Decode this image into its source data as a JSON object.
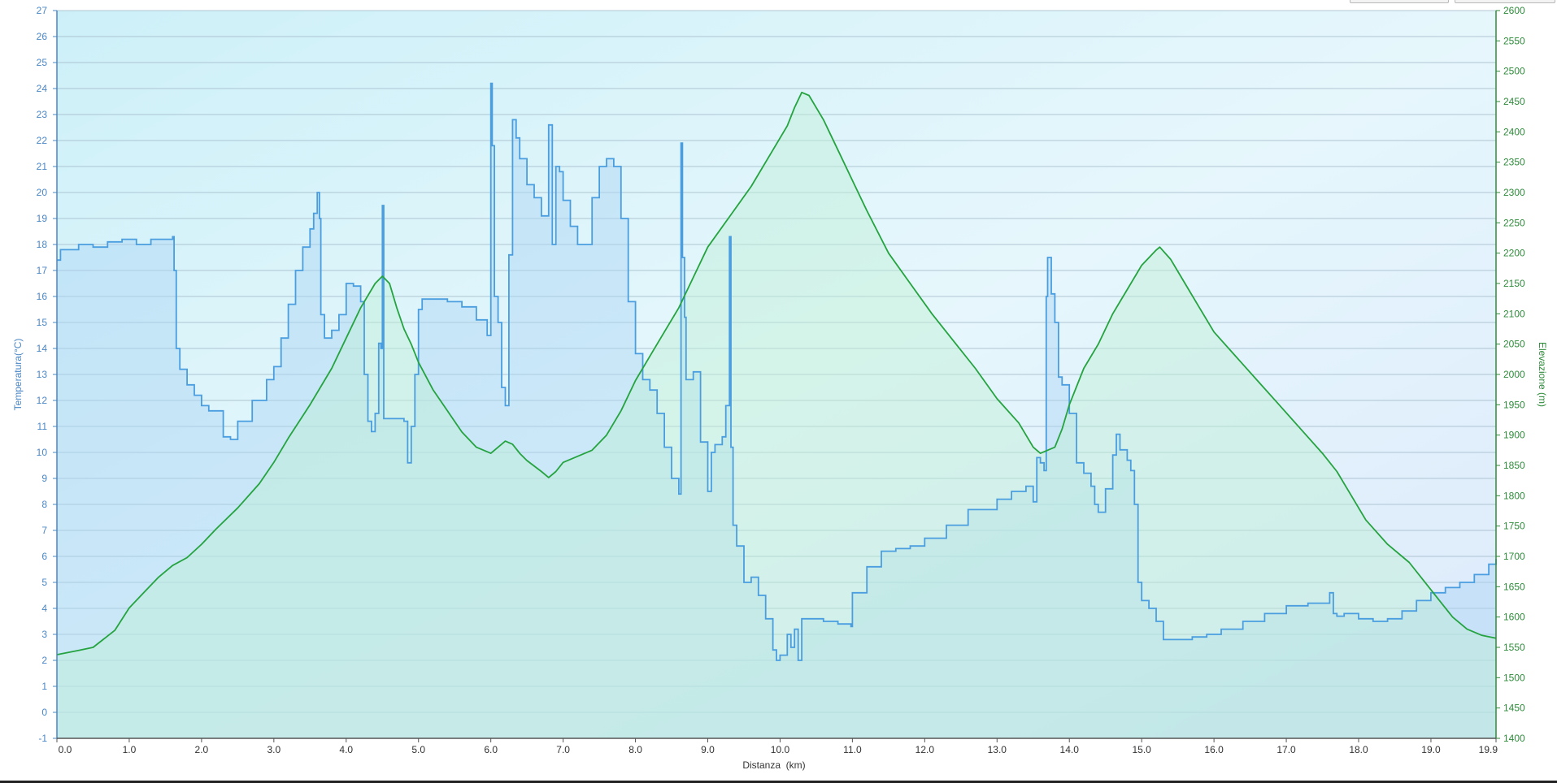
{
  "chart_data": {
    "type": "area",
    "xlabel": "Distanza  (km)",
    "xlim": [
      0,
      19.9
    ],
    "x_ticks": [
      "0.0",
      "1.0",
      "2.0",
      "3.0",
      "4.0",
      "5.0",
      "6.0",
      "7.0",
      "8.0",
      "9.0",
      "10.0",
      "11.0",
      "12.0",
      "13.0",
      "14.0",
      "15.0",
      "16.0",
      "17.0",
      "18.0",
      "19.0",
      "19.9"
    ],
    "y_left": {
      "label": "Temperatura(°C)",
      "range": [
        -1,
        27
      ],
      "ticks": [
        -1,
        0,
        1,
        2,
        3,
        4,
        5,
        6,
        7,
        8,
        9,
        10,
        11,
        12,
        13,
        14,
        15,
        16,
        17,
        18,
        19,
        20,
        21,
        22,
        23,
        24,
        25,
        26,
        27
      ]
    },
    "y_right": {
      "label": "Elevazione (m)",
      "range": [
        1400,
        2600
      ],
      "ticks": [
        1400,
        1450,
        1500,
        1550,
        1600,
        1650,
        1700,
        1750,
        1800,
        1850,
        1900,
        1950,
        2000,
        2050,
        2100,
        2150,
        2200,
        2250,
        2300,
        2350,
        2400,
        2450,
        2500,
        2550,
        2600
      ]
    },
    "grid": true,
    "series": [
      {
        "name": "Temperatura(°C)",
        "axis": "left",
        "color": "#4a9ee0",
        "x": [
          0,
          0.05,
          0.1,
          0.3,
          0.5,
          0.7,
          0.9,
          1.1,
          1.3,
          1.5,
          1.6,
          1.62,
          1.65,
          1.7,
          1.8,
          1.9,
          2.0,
          2.1,
          2.2,
          2.3,
          2.4,
          2.5,
          2.7,
          2.9,
          3.0,
          3.1,
          3.2,
          3.3,
          3.4,
          3.5,
          3.55,
          3.6,
          3.63,
          3.65,
          3.7,
          3.8,
          3.9,
          4.0,
          4.1,
          4.2,
          4.25,
          4.3,
          4.35,
          4.4,
          4.45,
          4.48,
          4.5,
          4.52,
          4.55,
          4.6,
          4.8,
          4.85,
          4.9,
          4.95,
          5.0,
          5.05,
          5.2,
          5.4,
          5.6,
          5.8,
          5.95,
          6.0,
          6.02,
          6.05,
          6.1,
          6.15,
          6.2,
          6.25,
          6.3,
          6.35,
          6.4,
          6.45,
          6.5,
          6.6,
          6.7,
          6.8,
          6.85,
          6.9,
          6.95,
          7.0,
          7.1,
          7.2,
          7.3,
          7.4,
          7.5,
          7.6,
          7.7,
          7.8,
          7.9,
          8.0,
          8.1,
          8.2,
          8.3,
          8.4,
          8.5,
          8.6,
          8.63,
          8.65,
          8.68,
          8.7,
          8.8,
          8.9,
          9.0,
          9.05,
          9.1,
          9.2,
          9.25,
          9.3,
          9.32,
          9.35,
          9.4,
          9.5,
          9.6,
          9.7,
          9.8,
          9.9,
          9.95,
          10.0,
          10.1,
          10.15,
          10.2,
          10.25,
          10.3,
          10.4,
          10.6,
          10.8,
          10.98,
          11.0,
          11.2,
          11.4,
          11.6,
          11.8,
          12.0,
          12.3,
          12.6,
          13.0,
          13.2,
          13.4,
          13.45,
          13.5,
          13.55,
          13.6,
          13.65,
          13.68,
          13.7,
          13.75,
          13.8,
          13.85,
          13.9,
          14.0,
          14.1,
          14.2,
          14.3,
          14.35,
          14.4,
          14.5,
          14.6,
          14.65,
          14.7,
          14.8,
          14.85,
          14.9,
          14.95,
          15.0,
          15.1,
          15.2,
          15.3,
          15.5,
          15.7,
          15.9,
          16.1,
          16.4,
          16.7,
          17.0,
          17.3,
          17.6,
          17.65,
          17.7,
          17.8,
          18.0,
          18.2,
          18.4,
          18.6,
          18.8,
          19.0,
          19.2,
          19.4,
          19.6,
          19.8,
          19.9
        ],
        "values": [
          17.4,
          17.8,
          17.8,
          18.0,
          17.9,
          18.1,
          18.2,
          18.0,
          18.2,
          18.2,
          18.3,
          17.0,
          14.0,
          13.2,
          12.6,
          12.2,
          11.8,
          11.6,
          11.6,
          10.6,
          10.5,
          11.2,
          12.0,
          12.8,
          13.3,
          14.4,
          15.7,
          17.0,
          17.9,
          18.6,
          19.2,
          20.0,
          19.0,
          15.3,
          14.4,
          14.7,
          15.3,
          16.5,
          16.4,
          15.8,
          13.0,
          11.2,
          10.8,
          11.5,
          14.2,
          14.0,
          19.5,
          11.3,
          11.3,
          11.3,
          11.2,
          9.6,
          11.0,
          13.0,
          15.5,
          15.9,
          15.9,
          15.8,
          15.6,
          15.1,
          14.5,
          24.2,
          21.8,
          16.0,
          15.0,
          12.5,
          11.8,
          17.6,
          22.8,
          22.1,
          21.3,
          21.3,
          20.3,
          19.8,
          19.1,
          22.6,
          18.0,
          21.0,
          20.8,
          19.7,
          18.7,
          18.0,
          18.0,
          19.8,
          21.0,
          21.3,
          21.0,
          19.0,
          15.8,
          13.8,
          12.8,
          12.4,
          11.5,
          10.2,
          9.0,
          8.4,
          21.9,
          17.5,
          15.2,
          12.8,
          13.1,
          10.4,
          8.5,
          10.0,
          10.3,
          10.6,
          11.8,
          18.3,
          10.2,
          7.2,
          6.4,
          5.0,
          5.2,
          4.5,
          3.6,
          2.4,
          2.0,
          2.2,
          3.0,
          2.5,
          3.2,
          2.0,
          3.6,
          3.6,
          3.5,
          3.4,
          3.3,
          4.6,
          5.6,
          6.2,
          6.3,
          6.4,
          6.7,
          7.2,
          7.8,
          8.2,
          8.5,
          8.7,
          8.7,
          8.1,
          9.8,
          9.6,
          9.3,
          16.0,
          17.5,
          16.1,
          15.0,
          12.9,
          12.6,
          11.5,
          9.6,
          9.2,
          8.7,
          8.0,
          7.7,
          8.6,
          9.9,
          10.7,
          10.1,
          9.7,
          9.3,
          8.0,
          5.0,
          4.3,
          4.0,
          3.5,
          2.8,
          2.8,
          2.9,
          3.0,
          3.2,
          3.5,
          3.8,
          4.1,
          4.2,
          4.6,
          3.8,
          3.7,
          3.8,
          3.6,
          3.5,
          3.6,
          3.9,
          4.3,
          4.6,
          4.8,
          5.0,
          5.3,
          5.7,
          5.9
        ]
      },
      {
        "name": "Elevazione (m)",
        "axis": "right",
        "color": "#24a33f",
        "x": [
          0,
          0.3,
          0.5,
          0.8,
          1.0,
          1.2,
          1.4,
          1.6,
          1.8,
          2.0,
          2.2,
          2.5,
          2.8,
          3.0,
          3.2,
          3.5,
          3.8,
          4.0,
          4.2,
          4.4,
          4.5,
          4.6,
          4.7,
          4.8,
          4.9,
          5.0,
          5.2,
          5.4,
          5.6,
          5.8,
          6.0,
          6.1,
          6.2,
          6.3,
          6.4,
          6.5,
          6.7,
          6.8,
          6.9,
          7.0,
          7.2,
          7.4,
          7.6,
          7.8,
          8.0,
          8.2,
          8.4,
          8.6,
          8.8,
          9.0,
          9.3,
          9.6,
          9.9,
          10.1,
          10.2,
          10.3,
          10.4,
          10.6,
          10.8,
          11.0,
          11.2,
          11.5,
          11.8,
          12.1,
          12.4,
          12.7,
          13.0,
          13.3,
          13.5,
          13.6,
          13.7,
          13.8,
          13.9,
          14.0,
          14.2,
          14.4,
          14.6,
          14.8,
          15.0,
          15.2,
          15.25,
          15.4,
          15.6,
          15.8,
          16.0,
          16.3,
          16.6,
          16.9,
          17.2,
          17.5,
          17.7,
          17.9,
          18.1,
          18.4,
          18.7,
          18.9,
          19.1,
          19.3,
          19.5,
          19.7,
          19.9
        ],
        "values": [
          1538,
          1545,
          1550,
          1578,
          1615,
          1640,
          1665,
          1685,
          1698,
          1720,
          1745,
          1780,
          1820,
          1855,
          1895,
          1950,
          2010,
          2060,
          2110,
          2150,
          2162,
          2150,
          2110,
          2075,
          2050,
          2020,
          1975,
          1940,
          1905,
          1880,
          1870,
          1880,
          1890,
          1885,
          1870,
          1858,
          1840,
          1830,
          1840,
          1855,
          1865,
          1875,
          1900,
          1940,
          1990,
          2030,
          2070,
          2110,
          2160,
          2210,
          2260,
          2310,
          2370,
          2410,
          2440,
          2465,
          2460,
          2420,
          2370,
          2320,
          2270,
          2200,
          2150,
          2100,
          2055,
          2010,
          1960,
          1920,
          1880,
          1870,
          1875,
          1880,
          1910,
          1950,
          2010,
          2050,
          2100,
          2140,
          2180,
          2205,
          2210,
          2190,
          2150,
          2110,
          2070,
          2030,
          1990,
          1950,
          1910,
          1870,
          1840,
          1800,
          1760,
          1720,
          1690,
          1660,
          1630,
          1600,
          1580,
          1570,
          1565
        ]
      }
    ]
  }
}
